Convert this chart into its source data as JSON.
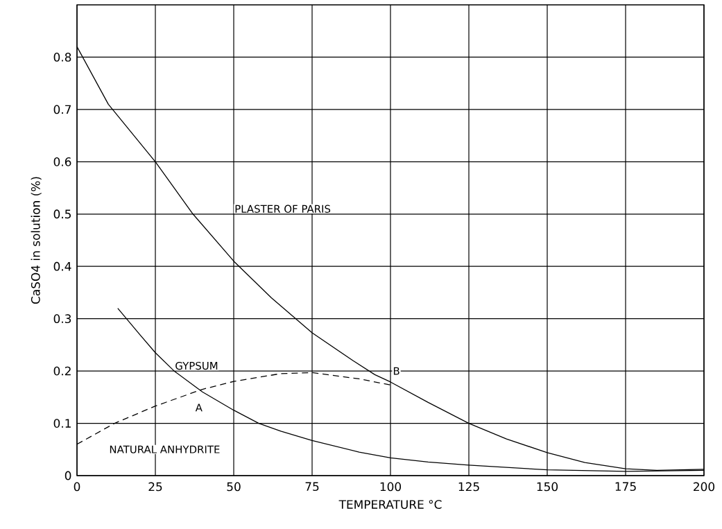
{
  "chart_data": {
    "type": "line",
    "xlabel": "TEMPERATURE °C",
    "ylabel": "CaSO4 in solution (%)",
    "xlim": [
      0,
      200
    ],
    "ylim": [
      0,
      0.9
    ],
    "xticks": [
      0,
      25,
      50,
      75,
      100,
      125,
      150,
      175,
      200
    ],
    "yticks": [
      0,
      0.1,
      0.2,
      0.3,
      0.4,
      0.5,
      0.6,
      0.7,
      0.8
    ],
    "grid": true,
    "marker": "none",
    "series": [
      {
        "color": "#000000",
        "line_style": "solid",
        "x": [
          0,
          10,
          25,
          37,
          50,
          62,
          75,
          88,
          95,
          100,
          112,
          125,
          137,
          150,
          162,
          175,
          185,
          200
        ],
        "values": [
          0.82,
          0.71,
          0.6,
          0.5,
          0.41,
          0.34,
          0.273,
          0.22,
          0.193,
          0.179,
          0.14,
          0.1,
          0.07,
          0.044,
          0.025,
          0.013,
          0.01,
          0.012
        ]
      },
      {
        "color": "#000000",
        "line_style": "solid",
        "x": [
          13,
          20,
          25,
          31,
          40,
          50,
          58,
          65,
          75,
          90,
          100,
          112,
          125,
          150,
          175,
          200
        ],
        "values": [
          0.32,
          0.27,
          0.235,
          0.2,
          0.16,
          0.125,
          0.1,
          0.085,
          0.067,
          0.045,
          0.034,
          0.026,
          0.02,
          0.011,
          0.008,
          0.01
        ]
      },
      {
        "color": "#000000",
        "line_style": "dashed",
        "x": [
          0,
          12,
          25,
          40,
          50,
          65,
          75,
          90,
          101
        ],
        "values": [
          0.06,
          0.1,
          0.133,
          0.165,
          0.18,
          0.195,
          0.197,
          0.185,
          0.172
        ]
      }
    ],
    "annotations": [
      "PLASTER OF PARIS",
      {
        "text": "GYPSUM",
        "x": 31,
        "y": 0.21
      },
      "A",
      "B",
      "NATURAL ANHYDRITE"
    ]
  }
}
